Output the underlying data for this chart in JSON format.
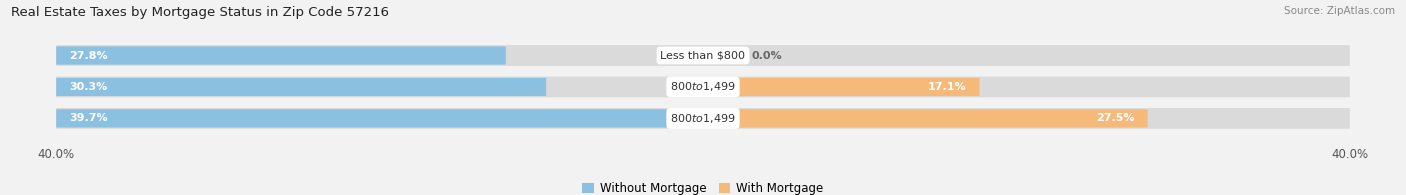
{
  "title": "Real Estate Taxes by Mortgage Status in Zip Code 57216",
  "source": "Source: ZipAtlas.com",
  "rows": [
    {
      "label": "Less than $800",
      "without_mortgage": 27.8,
      "with_mortgage": 0.0
    },
    {
      "label": "$800 to $1,499",
      "without_mortgage": 30.3,
      "with_mortgage": 17.1
    },
    {
      "label": "$800 to $1,499",
      "without_mortgage": 39.7,
      "with_mortgage": 27.5
    }
  ],
  "max_val": 40.0,
  "color_without": "#8CC0E0",
  "color_with": "#F5B97A",
  "bar_height": 0.58,
  "bg_color": "#F2F2F2",
  "row_bg_color": "#E2E2E2",
  "title_fontsize": 9.5,
  "label_fontsize": 8.0,
  "pct_fontsize": 8.0,
  "tick_fontsize": 8.5,
  "legend_fontsize": 8.5,
  "source_fontsize": 7.5
}
